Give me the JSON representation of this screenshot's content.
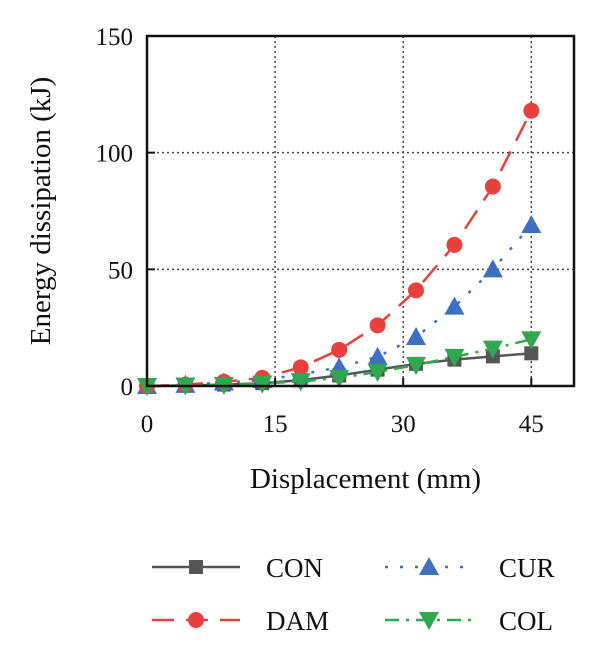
{
  "chart_data": {
    "type": "line",
    "title": "",
    "xlabel": "Displacement (mm)",
    "ylabel": "Energy dissipation (kJ)",
    "xlim": [
      0,
      50
    ],
    "ylim": [
      0,
      150
    ],
    "xticks": [
      0,
      15,
      30,
      45
    ],
    "yticks": [
      0,
      50,
      100,
      150
    ],
    "grid": "dotted-major",
    "legend_position": "bottom",
    "x": [
      0,
      4.5,
      9,
      13.5,
      18,
      22.5,
      27,
      31.5,
      36,
      40.5,
      45
    ],
    "series": [
      {
        "name": "CON",
        "color": "#555555",
        "marker": "square",
        "line": "solid",
        "values": [
          0,
          0.2,
          0.6,
          1.2,
          2.5,
          4.5,
          7.0,
          9.5,
          11.3,
          12.7,
          14.0
        ]
      },
      {
        "name": "CUR",
        "color": "#3f6fc0",
        "marker": "triangle-up",
        "line": "dotted",
        "values": [
          0,
          0.5,
          1.5,
          2.5,
          5.0,
          8.0,
          12.5,
          21.0,
          34.0,
          50.0,
          69.0
        ]
      },
      {
        "name": "DAM",
        "color": "#e8403c",
        "marker": "circle",
        "line": "dashed",
        "values": [
          0,
          0.6,
          1.8,
          3.5,
          8.0,
          15.5,
          26.0,
          41.0,
          60.5,
          85.5,
          118.0
        ]
      },
      {
        "name": "COL",
        "color": "#2fa84f",
        "marker": "triangle-down",
        "line": "dashdot",
        "values": [
          0,
          0.2,
          0.5,
          1.0,
          2.0,
          3.5,
          6.0,
          9.0,
          12.5,
          16.0,
          20.0
        ]
      }
    ]
  }
}
